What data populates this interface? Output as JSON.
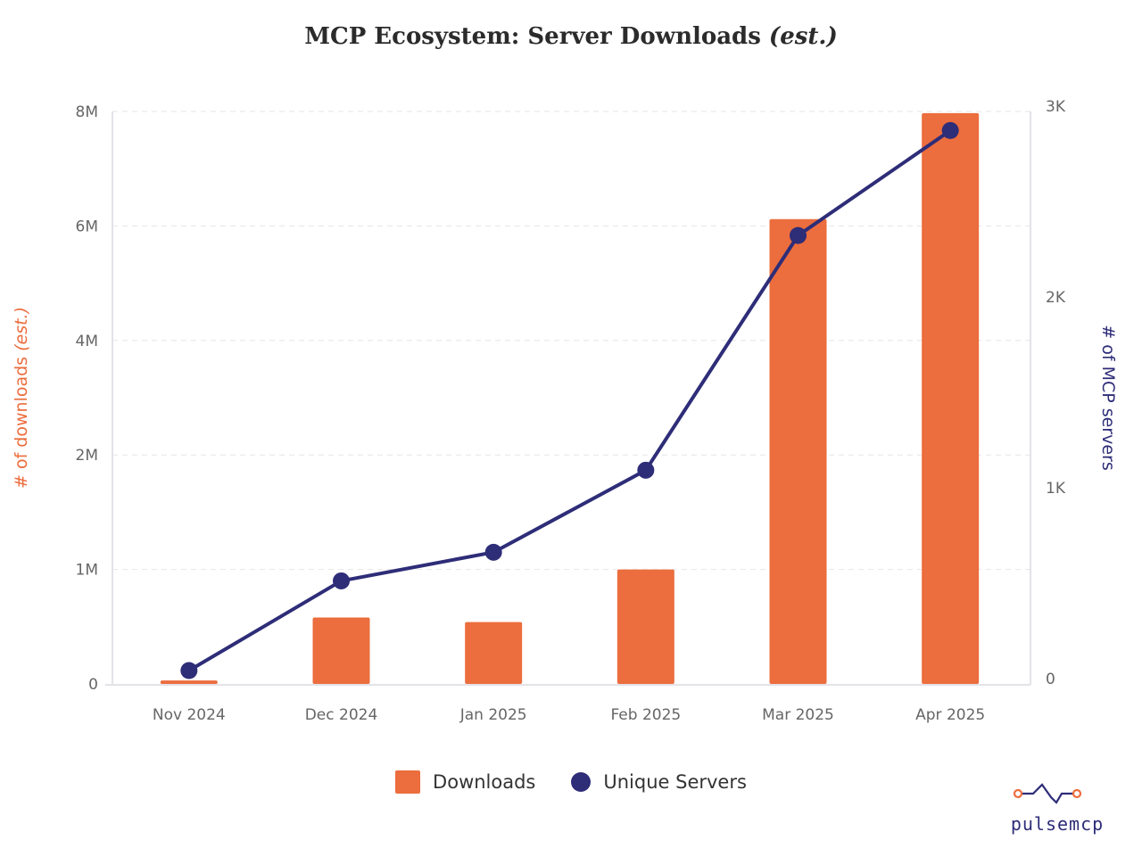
{
  "chart_data": {
    "type": "bar+line",
    "title": "MCP Ecosystem: Server Downloads",
    "title_suffix": "(est.)",
    "categories": [
      "Nov 2024",
      "Dec 2024",
      "Jan 2025",
      "Feb 2025",
      "Mar 2025",
      "Apr 2025"
    ],
    "series": [
      {
        "name": "Downloads",
        "type": "bar",
        "axis": "left",
        "color": "#ec6d3d",
        "values": [
          30000,
          580000,
          540000,
          1000000,
          6120000,
          7970000
        ]
      },
      {
        "name": "Unique Servers",
        "type": "line",
        "axis": "right",
        "color": "#2e2d78",
        "values": [
          70,
          540,
          690,
          1120,
          2350,
          2900
        ]
      }
    ],
    "y_left": {
      "label": "# of downloads",
      "label_suffix": "(est.)",
      "ticks": [
        0,
        1000000,
        2000000,
        4000000,
        6000000,
        8000000
      ],
      "tick_labels": [
        "0",
        "1M",
        "2M",
        "4M",
        "6M",
        "8M"
      ],
      "color": "#ec6d3d"
    },
    "y_right": {
      "label": "# of MCP servers",
      "ticks": [
        0,
        1000,
        2000,
        3000
      ],
      "tick_labels": [
        "0",
        "1K",
        "2K",
        "3K"
      ],
      "range": [
        0,
        3000
      ],
      "color": "#2e2d78"
    },
    "grid": true,
    "legend_position": "bottom"
  },
  "brand": {
    "name": "pulsemcp",
    "accent": "#ec6d3d",
    "primary": "#2e2d78"
  }
}
